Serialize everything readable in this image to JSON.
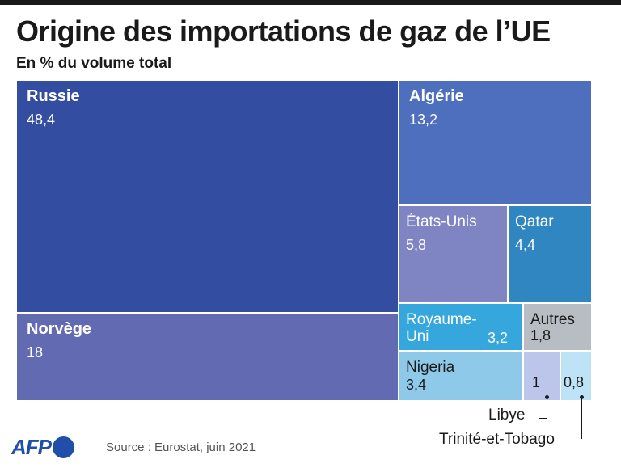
{
  "title": "Origine des importations de gaz de l’UE",
  "subtitle": "En % du volume total",
  "source": "Source : Eurostat, juin 2021",
  "logo": "AFP",
  "chart_data": {
    "type": "treemap",
    "title": "Origine des importations de gaz de l’UE",
    "subtitle": "En % du volume total",
    "unit": "%",
    "categories": [
      "Russie",
      "Norvège",
      "Algérie",
      "États-Unis",
      "Qatar",
      "Royaume-Uni",
      "Autres",
      "Nigeria",
      "Libye",
      "Trinité-et-Tobago"
    ],
    "values": [
      48.4,
      18,
      13.2,
      5.8,
      4.4,
      3.2,
      1.8,
      3.4,
      1,
      0.8
    ],
    "labels": [
      {
        "name": "Russie",
        "value_text": "48,4",
        "color": "#334ea1"
      },
      {
        "name": "Norvège",
        "value_text": "18",
        "color": "#626bb1"
      },
      {
        "name": "Algérie",
        "value_text": "13,2",
        "color": "#4e6fbd"
      },
      {
        "name": "États-Unis",
        "value_text": "5,8",
        "color": "#7f84c3"
      },
      {
        "name": "Qatar",
        "value_text": "4,4",
        "color": "#2f86c0"
      },
      {
        "name": "Royaume-\nUni",
        "value_text": "3,2",
        "color": "#35a7dc"
      },
      {
        "name": "Autres",
        "value_text": "1,8",
        "color": "#b7bdc3"
      },
      {
        "name": "Nigeria",
        "value_text": "3,4",
        "color": "#8fc9ea"
      },
      {
        "name": "Libye",
        "value_text": "1",
        "color": "#bcc5ea"
      },
      {
        "name": "Trinité-et-Tobago",
        "value_text": "0,8",
        "color": "#bfe3f6"
      }
    ]
  }
}
